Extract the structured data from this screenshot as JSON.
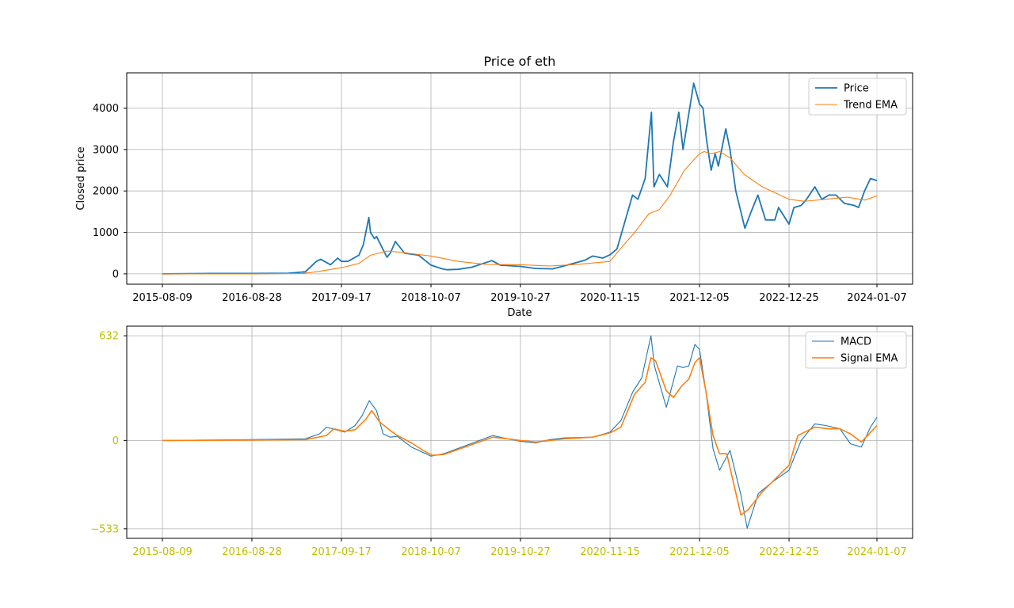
{
  "chart_data": [
    {
      "type": "line",
      "title": "Price of eth",
      "xlabel": "Date",
      "ylabel": "Closed price",
      "x_ticks": [
        "2015-08-09",
        "2016-08-28",
        "2017-09-17",
        "2018-10-07",
        "2019-10-27",
        "2020-11-15",
        "2021-12-05",
        "2022-12-25",
        "2024-01-07"
      ],
      "y_ticks": [
        0,
        1000,
        2000,
        3000,
        4000
      ],
      "ylim": [
        -250,
        4850
      ],
      "grid": true,
      "legend": "top-right",
      "colors": {
        "Price": "#1f77b4",
        "Trend EMA": "#ff7f0e"
      },
      "series": [
        {
          "name": "Price",
          "x": [
            "2015-08-09",
            "2016-03-01",
            "2016-08-28",
            "2017-02-01",
            "2017-04-15",
            "2017-06-01",
            "2017-06-20",
            "2017-08-01",
            "2017-09-01",
            "2017-09-17",
            "2017-10-15",
            "2017-12-01",
            "2017-12-20",
            "2018-01-13",
            "2018-01-20",
            "2018-02-06",
            "2018-02-15",
            "2018-04-01",
            "2018-04-15",
            "2018-05-07",
            "2018-06-15",
            "2018-08-15",
            "2018-10-07",
            "2018-11-25",
            "2018-12-15",
            "2019-02-01",
            "2019-04-01",
            "2019-06-26",
            "2019-08-01",
            "2019-10-27",
            "2019-12-31",
            "2020-03-13",
            "2020-05-15",
            "2020-07-31",
            "2020-09-01",
            "2020-10-15",
            "2020-11-15",
            "2020-12-15",
            "2021-01-15",
            "2021-02-20",
            "2021-03-15",
            "2021-04-15",
            "2021-05-12",
            "2021-05-23",
            "2021-06-15",
            "2021-07-20",
            "2021-08-15",
            "2021-09-07",
            "2021-09-25",
            "2021-11-10",
            "2021-12-05",
            "2021-12-20",
            "2022-01-05",
            "2022-01-24",
            "2022-02-10",
            "2022-02-24",
            "2022-03-28",
            "2022-04-15",
            "2022-05-10",
            "2022-06-18",
            "2022-07-15",
            "2022-08-13",
            "2022-09-15",
            "2022-10-25",
            "2022-11-10",
            "2022-12-25",
            "2023-01-15",
            "2023-02-15",
            "2023-03-10",
            "2023-04-15",
            "2023-05-15",
            "2023-06-15",
            "2023-07-15",
            "2023-08-20",
            "2023-10-01",
            "2023-10-20",
            "2023-11-15",
            "2023-12-10",
            "2024-01-07"
          ],
          "values": [
            0,
            10,
            10,
            15,
            50,
            300,
            350,
            220,
            380,
            300,
            300,
            450,
            700,
            1360,
            1000,
            850,
            900,
            400,
            500,
            780,
            500,
            450,
            210,
            120,
            100,
            110,
            160,
            320,
            210,
            180,
            130,
            120,
            210,
            330,
            430,
            380,
            460,
            600,
            1200,
            1900,
            1800,
            2300,
            3900,
            2100,
            2400,
            2100,
            3200,
            3900,
            3000,
            4600,
            4100,
            4000,
            3200,
            2500,
            2900,
            2600,
            3500,
            3000,
            2000,
            1100,
            1500,
            1900,
            1300,
            1300,
            1600,
            1200,
            1600,
            1650,
            1800,
            2100,
            1800,
            1900,
            1900,
            1700,
            1650,
            1600,
            2000,
            2300,
            2250
          ]
        },
        {
          "name": "Trend EMA",
          "x": [
            "2015-08-09",
            "2016-08-28",
            "2017-04-01",
            "2017-06-01",
            "2017-09-17",
            "2017-12-01",
            "2018-01-20",
            "2018-04-01",
            "2018-06-01",
            "2018-10-07",
            "2019-02-01",
            "2019-06-01",
            "2019-10-27",
            "2020-03-01",
            "2020-07-01",
            "2020-11-15",
            "2021-01-01",
            "2021-03-01",
            "2021-05-01",
            "2021-06-15",
            "2021-08-01",
            "2021-10-01",
            "2021-12-05",
            "2021-12-25",
            "2022-01-25",
            "2022-03-01",
            "2022-04-15",
            "2022-06-15",
            "2022-09-01",
            "2022-12-25",
            "2023-03-01",
            "2023-06-01",
            "2023-09-01",
            "2023-11-15",
            "2024-01-07"
          ],
          "values": [
            0,
            0,
            10,
            50,
            150,
            250,
            450,
            550,
            520,
            430,
            300,
            230,
            220,
            190,
            230,
            300,
            620,
            1000,
            1450,
            1550,
            1900,
            2500,
            2900,
            2950,
            2900,
            2950,
            2800,
            2400,
            2100,
            1800,
            1750,
            1800,
            1850,
            1780,
            1880
          ]
        }
      ]
    },
    {
      "type": "line",
      "title": "",
      "xlabel": "",
      "ylabel": "",
      "x_ticks": [
        "2015-08-09",
        "2016-08-28",
        "2017-09-17",
        "2018-10-07",
        "2019-10-27",
        "2020-11-15",
        "2021-12-05",
        "2022-12-25",
        "2024-01-07"
      ],
      "y_ticks": [
        632,
        0,
        -533
      ],
      "y_tick_labels": [
        "632",
        "0",
        "−533"
      ],
      "ylim": [
        -591,
        690
      ],
      "grid": true,
      "legend": "top-right",
      "colors": {
        "MACD": "#1f77b4",
        "Signal EMA": "#ff7f0e",
        "tick_labels": "#bfbf00"
      },
      "series": [
        {
          "name": "MACD",
          "x": [
            "2015-08-09",
            "2016-08-28",
            "2017-04-15",
            "2017-06-15",
            "2017-07-15",
            "2017-10-01",
            "2017-11-15",
            "2017-12-15",
            "2018-01-15",
            "2018-02-15",
            "2018-03-15",
            "2018-04-15",
            "2018-05-15",
            "2018-07-15",
            "2018-09-15",
            "2018-10-07",
            "2018-12-01",
            "2019-06-30",
            "2019-09-01",
            "2019-10-27",
            "2020-01-01",
            "2020-03-01",
            "2020-05-01",
            "2020-09-01",
            "2020-11-15",
            "2021-01-01",
            "2021-02-20",
            "2021-04-01",
            "2021-05-10",
            "2021-05-25",
            "2021-07-15",
            "2021-09-01",
            "2021-09-25",
            "2021-10-20",
            "2021-11-15",
            "2021-12-05",
            "2022-01-01",
            "2022-02-01",
            "2022-03-01",
            "2022-04-15",
            "2022-06-01",
            "2022-06-28",
            "2022-08-15",
            "2022-10-15",
            "2022-12-25",
            "2023-02-15",
            "2023-04-15",
            "2023-06-01",
            "2023-08-01",
            "2023-09-15",
            "2023-11-01",
            "2023-12-10",
            "2024-01-07"
          ],
          "values": [
            0,
            5,
            10,
            40,
            80,
            50,
            90,
            150,
            240,
            180,
            40,
            20,
            25,
            -40,
            -80,
            -95,
            -80,
            30,
            10,
            -5,
            -15,
            5,
            15,
            20,
            50,
            120,
            290,
            380,
            632,
            450,
            200,
            450,
            440,
            450,
            580,
            550,
            300,
            -50,
            -180,
            -60,
            -330,
            -530,
            -320,
            -250,
            -180,
            0,
            100,
            90,
            70,
            -20,
            -40,
            80,
            140
          ]
        },
        {
          "name": "Signal EMA",
          "x": [
            "2015-08-09",
            "2016-08-28",
            "2017-04-15",
            "2017-07-15",
            "2017-08-15",
            "2017-10-01",
            "2017-11-15",
            "2018-01-01",
            "2018-01-25",
            "2018-03-01",
            "2018-04-15",
            "2018-05-15",
            "2018-07-15",
            "2018-09-15",
            "2018-10-15",
            "2018-12-01",
            "2019-06-30",
            "2019-09-01",
            "2019-10-27",
            "2020-01-01",
            "2020-03-01",
            "2020-05-01",
            "2020-09-01",
            "2020-11-15",
            "2021-01-01",
            "2021-03-01",
            "2021-04-15",
            "2021-05-10",
            "2021-05-30",
            "2021-07-15",
            "2021-08-15",
            "2021-09-20",
            "2021-10-20",
            "2021-11-15",
            "2021-12-05",
            "2022-01-01",
            "2022-02-01",
            "2022-03-01",
            "2022-04-01",
            "2022-06-01",
            "2022-07-01",
            "2022-09-01",
            "2022-12-25",
            "2023-02-01",
            "2023-04-15",
            "2023-06-15",
            "2023-08-01",
            "2023-09-15",
            "2023-11-01",
            "2024-01-07"
          ],
          "values": [
            0,
            2,
            5,
            30,
            70,
            55,
            65,
            130,
            180,
            110,
            60,
            30,
            -15,
            -70,
            -90,
            -85,
            20,
            10,
            0,
            -10,
            0,
            10,
            20,
            45,
            80,
            280,
            350,
            500,
            480,
            300,
            260,
            330,
            370,
            470,
            500,
            300,
            30,
            -80,
            -80,
            -450,
            -420,
            -310,
            -150,
            30,
            80,
            70,
            70,
            40,
            -10,
            90
          ]
        }
      ]
    }
  ]
}
